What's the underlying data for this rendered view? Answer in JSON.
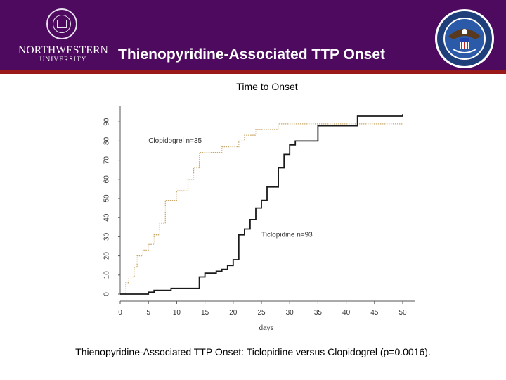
{
  "header": {
    "title": "Thienopyridine-Associated TTP Onset",
    "logo_left": {
      "name": "NORTHWESTERN",
      "subname": "UNIVERSITY"
    },
    "colors": {
      "background": "#4e0a5e",
      "rule": "#9a1a1a"
    }
  },
  "caption": {
    "lead": "Thienopyridine-Associated TTP Onset:",
    "text": " Ticlopidine versus Clopidogrel (p=0.0016)."
  },
  "chart_data": {
    "type": "line",
    "title": "Time to Onset",
    "xlabel": "days",
    "ylabel": "",
    "xlim": [
      0,
      52
    ],
    "ylim": [
      0,
      95
    ],
    "xticks": [
      0,
      5,
      10,
      15,
      20,
      25,
      30,
      35,
      40,
      45,
      50
    ],
    "yticks": [
      0,
      10,
      20,
      30,
      40,
      50,
      60,
      70,
      80,
      90
    ],
    "grid": false,
    "series": [
      {
        "name": "Clopidogrel n=35",
        "style": "dotted",
        "color": "#c9a96b",
        "points": [
          [
            0,
            0
          ],
          [
            1,
            0
          ],
          [
            1,
            6
          ],
          [
            1.5,
            6
          ],
          [
            1.5,
            9
          ],
          [
            2.5,
            9
          ],
          [
            2.5,
            14
          ],
          [
            3,
            14
          ],
          [
            3,
            20
          ],
          [
            4,
            20
          ],
          [
            4,
            23
          ],
          [
            5,
            23
          ],
          [
            5,
            26
          ],
          [
            6,
            26
          ],
          [
            6,
            31
          ],
          [
            7,
            31
          ],
          [
            7,
            37
          ],
          [
            8,
            37
          ],
          [
            8,
            49
          ],
          [
            10,
            49
          ],
          [
            10,
            54
          ],
          [
            12,
            54
          ],
          [
            12,
            60
          ],
          [
            13,
            60
          ],
          [
            13,
            66
          ],
          [
            14,
            66
          ],
          [
            14,
            74
          ],
          [
            15,
            74
          ],
          [
            15,
            74
          ],
          [
            18,
            74
          ],
          [
            18,
            77
          ],
          [
            21,
            77
          ],
          [
            21,
            80
          ],
          [
            22,
            80
          ],
          [
            22,
            83
          ],
          [
            24,
            83
          ],
          [
            24,
            86
          ],
          [
            28,
            86
          ],
          [
            28,
            89
          ],
          [
            50,
            89
          ]
        ]
      },
      {
        "name": "Ticlopidine n=93",
        "style": "solid",
        "color": "#1a1a1a",
        "points": [
          [
            0,
            0
          ],
          [
            5,
            0
          ],
          [
            5,
            1
          ],
          [
            6,
            1
          ],
          [
            6,
            2
          ],
          [
            9,
            2
          ],
          [
            9,
            3
          ],
          [
            14,
            3
          ],
          [
            14,
            9
          ],
          [
            15,
            9
          ],
          [
            15,
            11
          ],
          [
            17,
            11
          ],
          [
            17,
            12
          ],
          [
            18,
            12
          ],
          [
            18,
            13
          ],
          [
            19,
            13
          ],
          [
            19,
            15
          ],
          [
            20,
            15
          ],
          [
            20,
            18
          ],
          [
            21,
            18
          ],
          [
            21,
            31
          ],
          [
            22,
            31
          ],
          [
            22,
            34
          ],
          [
            23,
            34
          ],
          [
            23,
            39
          ],
          [
            24,
            39
          ],
          [
            24,
            45
          ],
          [
            25,
            45
          ],
          [
            25,
            49
          ],
          [
            26,
            49
          ],
          [
            26,
            56
          ],
          [
            28,
            56
          ],
          [
            28,
            66
          ],
          [
            29,
            66
          ],
          [
            29,
            73
          ],
          [
            30,
            73
          ],
          [
            30,
            78
          ],
          [
            31,
            78
          ],
          [
            31,
            80
          ],
          [
            35,
            80
          ],
          [
            35,
            88
          ],
          [
            42,
            88
          ],
          [
            42,
            93
          ],
          [
            50,
            93
          ],
          [
            50,
            94
          ]
        ]
      }
    ],
    "annotations": [
      {
        "text": "Clopidogrel n=35",
        "x": 5,
        "y": 79
      },
      {
        "text": "Ticlopidine n=93",
        "x": 25,
        "y": 30
      }
    ]
  }
}
